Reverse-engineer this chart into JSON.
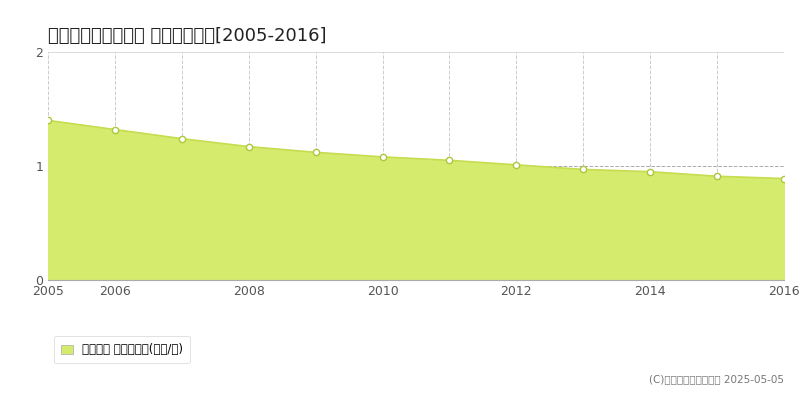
{
  "title": "東田川郡庄内町肝煎 基準地価推移[2005-2016]",
  "years": [
    2005,
    2006,
    2007,
    2008,
    2009,
    2010,
    2011,
    2012,
    2013,
    2014,
    2015,
    2016
  ],
  "values": [
    1.4,
    1.32,
    1.24,
    1.17,
    1.12,
    1.08,
    1.05,
    1.01,
    0.97,
    0.95,
    0.91,
    0.89
  ],
  "ylim": [
    0,
    2
  ],
  "yticks": [
    0,
    1,
    2
  ],
  "line_color": "#c8dc50",
  "fill_color": "#d4eb6e",
  "marker_facecolor": "#ffffff",
  "marker_edgecolor": "#aac83a",
  "bg_color": "#ffffff",
  "plot_bg_color": "#ffffff",
  "grid_color_vert": "#cccccc",
  "grid_color_horiz": "#aaaaaa",
  "title_fontsize": 13,
  "legend_label": "基準地価 平均坪単価(万円/坪)",
  "copyright_text": "(C)土地価格ドットコム 2025-05-05",
  "tick_fontsize": 9
}
